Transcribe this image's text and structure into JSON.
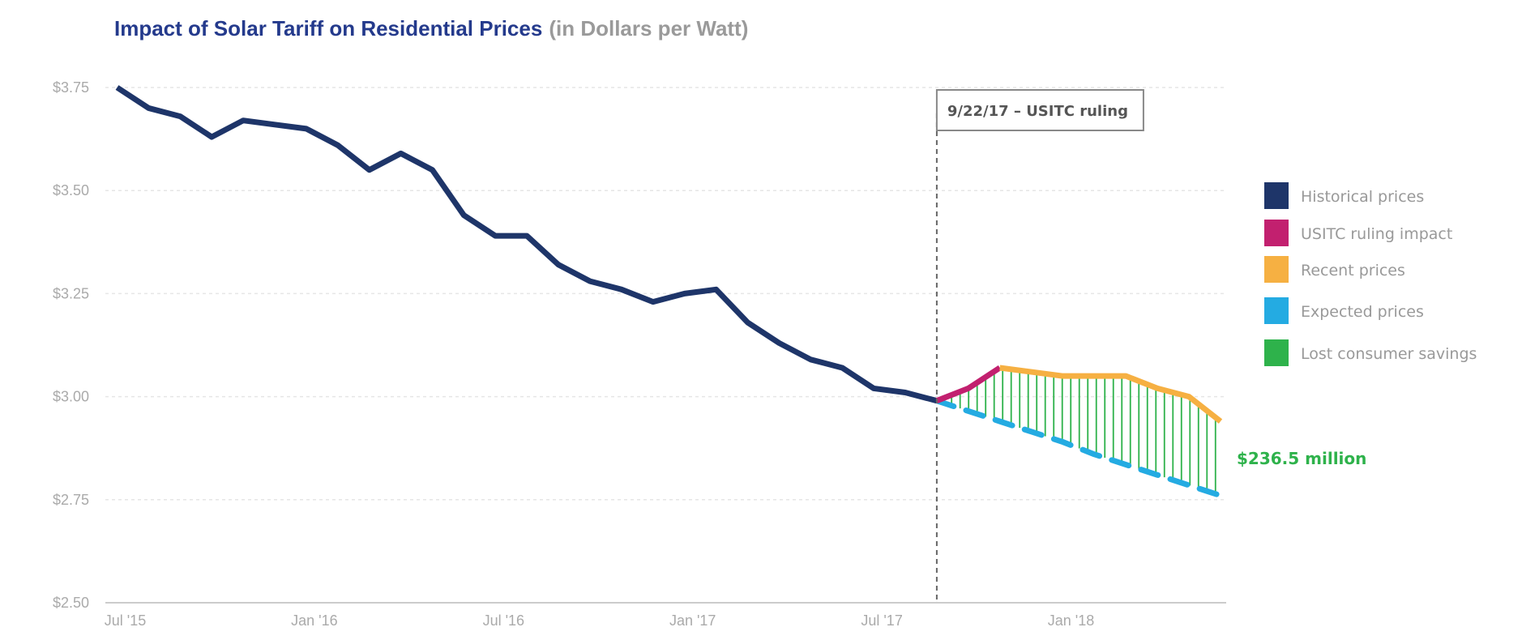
{
  "chart_data": {
    "type": "line",
    "title": "Impact of Solar Tariff on Residential Prices",
    "subtitle": "(in Dollars per Watt)",
    "xlabel": "",
    "ylabel": "",
    "ylim": [
      2.5,
      3.75
    ],
    "yticks": [
      "$3.75",
      "$3.50",
      "$3.25",
      "$3.00",
      "$2.75",
      "$2.50"
    ],
    "ytick_values": [
      3.75,
      3.5,
      3.25,
      3.0,
      2.75,
      2.5
    ],
    "xticks": [
      "Jul '15",
      "Jan '16",
      "Jul '16",
      "Jan '17",
      "Jul '17",
      "Jan '18"
    ],
    "xtick_months": [
      "2015-07",
      "2016-01",
      "2016-07",
      "2017-01",
      "2017-07",
      "2018-01"
    ],
    "xlim": [
      "2015-07",
      "2018-06"
    ],
    "grid": "horizontal dashed",
    "legend_position": "right",
    "series": [
      {
        "name": "Historical prices",
        "color": "#1e3569",
        "style": "solid",
        "x": [
          "2015-07",
          "2015-08",
          "2015-09",
          "2015-10",
          "2015-11",
          "2015-12",
          "2016-01",
          "2016-02",
          "2016-03",
          "2016-04",
          "2016-05",
          "2016-06",
          "2016-07",
          "2016-08",
          "2016-09",
          "2016-10",
          "2016-11",
          "2016-12",
          "2017-01",
          "2017-02",
          "2017-03",
          "2017-04",
          "2017-05",
          "2017-06",
          "2017-07",
          "2017-08",
          "2017-09"
        ],
        "values": [
          3.75,
          3.7,
          3.68,
          3.63,
          3.67,
          3.66,
          3.65,
          3.61,
          3.55,
          3.59,
          3.55,
          3.44,
          3.39,
          3.39,
          3.32,
          3.28,
          3.26,
          3.23,
          3.25,
          3.26,
          3.18,
          3.13,
          3.09,
          3.07,
          3.02,
          3.01,
          2.99
        ]
      },
      {
        "name": "USITC ruling impact",
        "color": "#c2206f",
        "style": "solid",
        "x": [
          "2017-09",
          "2017-10",
          "2017-11"
        ],
        "values": [
          2.99,
          3.02,
          3.07
        ]
      },
      {
        "name": "Recent prices",
        "color": "#f6b042",
        "style": "solid",
        "x": [
          "2017-11",
          "2017-12",
          "2018-01",
          "2018-02",
          "2018-03",
          "2018-04",
          "2018-05",
          "2018-06"
        ],
        "values": [
          3.07,
          3.06,
          3.05,
          3.05,
          3.05,
          3.02,
          3.0,
          2.94
        ]
      },
      {
        "name": "Expected prices",
        "color": "#24abe2",
        "style": "dashed",
        "x": [
          "2017-09",
          "2017-10",
          "2017-11",
          "2017-12",
          "2018-01",
          "2018-02",
          "2018-03",
          "2018-04",
          "2018-05",
          "2018-06"
        ],
        "values": [
          2.99,
          2.965,
          2.94,
          2.915,
          2.89,
          2.86,
          2.835,
          2.81,
          2.785,
          2.76
        ]
      },
      {
        "name": "Lost consumer savings",
        "color": "#2eb24b",
        "style": "hatch"
      }
    ],
    "annotations": {
      "ruling": {
        "label": "9/22/17 – USITC ruling",
        "x": "2017-09"
      },
      "savings": {
        "label": "$236.5 million",
        "color": "#2eb24b"
      }
    },
    "colors": {
      "title": "#243a8c",
      "subtitle": "#9a9a9a"
    }
  }
}
